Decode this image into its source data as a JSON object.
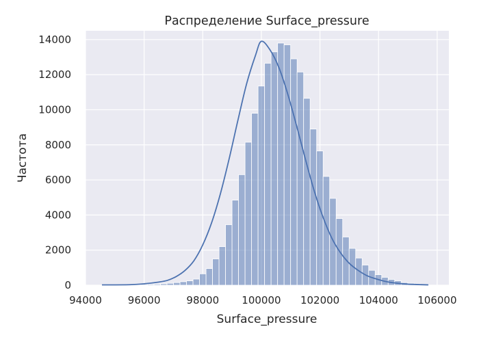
{
  "chart_data": {
    "type": "bar",
    "subtype": "histogram_with_kde",
    "title": "Распределение Surface_pressure",
    "xlabel": "Surface_pressure",
    "ylabel": "Частота",
    "xlim": [
      94000,
      106400
    ],
    "ylim": [
      0,
      14500
    ],
    "xticks": [
      94000,
      96000,
      98000,
      100000,
      102000,
      104000,
      106000
    ],
    "yticks": [
      0,
      2000,
      4000,
      6000,
      8000,
      10000,
      12000,
      14000
    ],
    "grid": true,
    "colors": {
      "background": "#EAEAF2",
      "bar": "#4C72B0",
      "kde": "#4C72B0",
      "grid": "#FFFFFF"
    },
    "bin_start": 94560,
    "bin_width": 222,
    "bin_counts": [
      20,
      20,
      20,
      20,
      30,
      30,
      40,
      50,
      60,
      80,
      110,
      150,
      200,
      250,
      350,
      650,
      950,
      1500,
      2200,
      3450,
      4850,
      6300,
      8150,
      9800,
      11350,
      12650,
      13300,
      13800,
      13700,
      12900,
      12150,
      10650,
      8900,
      7650,
      6200,
      4950,
      3800,
      2750,
      2100,
      1550,
      1150,
      850,
      600,
      450,
      330,
      250,
      150,
      110,
      70,
      40
    ],
    "kde_x": [
      94560,
      95500,
      96000,
      96500,
      96800,
      97100,
      97400,
      97700,
      98000,
      98300,
      98600,
      98900,
      99200,
      99500,
      99800,
      100000,
      100300,
      100600,
      100900,
      101200,
      101500,
      101800,
      102100,
      102400,
      102700,
      103000,
      103300,
      103600,
      103900,
      104200,
      104500,
      105000,
      105700
    ],
    "kde_y": [
      20,
      30,
      80,
      180,
      280,
      500,
      850,
      1400,
      2300,
      3550,
      5200,
      7200,
      9400,
      11500,
      13100,
      13900,
      13400,
      12400,
      10900,
      9100,
      7200,
      5400,
      3900,
      2700,
      1850,
      1250,
      850,
      550,
      370,
      230,
      140,
      60,
      20
    ]
  }
}
